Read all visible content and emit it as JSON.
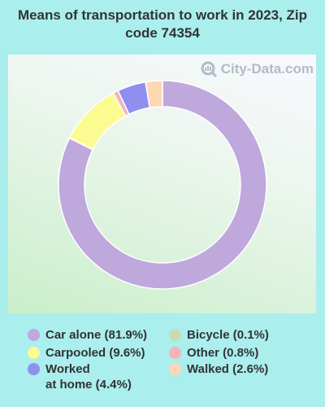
{
  "title": "Means of transportation to work in 2023, Zip code 74354",
  "watermark": "City-Data.com",
  "chart_data": {
    "type": "pie",
    "donut": true,
    "title": "Means of transportation to work in 2023, Zip code 74354",
    "legend_position": "bottom",
    "slices": [
      {
        "label": "Car alone (81.9%)",
        "value": 81.9,
        "color": "#bfa8dc"
      },
      {
        "label": "Bicycle (0.1%)",
        "value": 0.1,
        "color": "#c7dcb3"
      },
      {
        "label": "Carpooled (9.6%)",
        "value": 9.6,
        "color": "#fbfb90"
      },
      {
        "label": "Other (0.8%)",
        "value": 0.8,
        "color": "#f4b3b8"
      },
      {
        "label": "Worked\nat home (4.4%)",
        "value": 4.4,
        "color": "#8f8ff0"
      },
      {
        "label": "Walked (2.6%)",
        "value": 2.6,
        "color": "#fdd8b2"
      }
    ]
  }
}
